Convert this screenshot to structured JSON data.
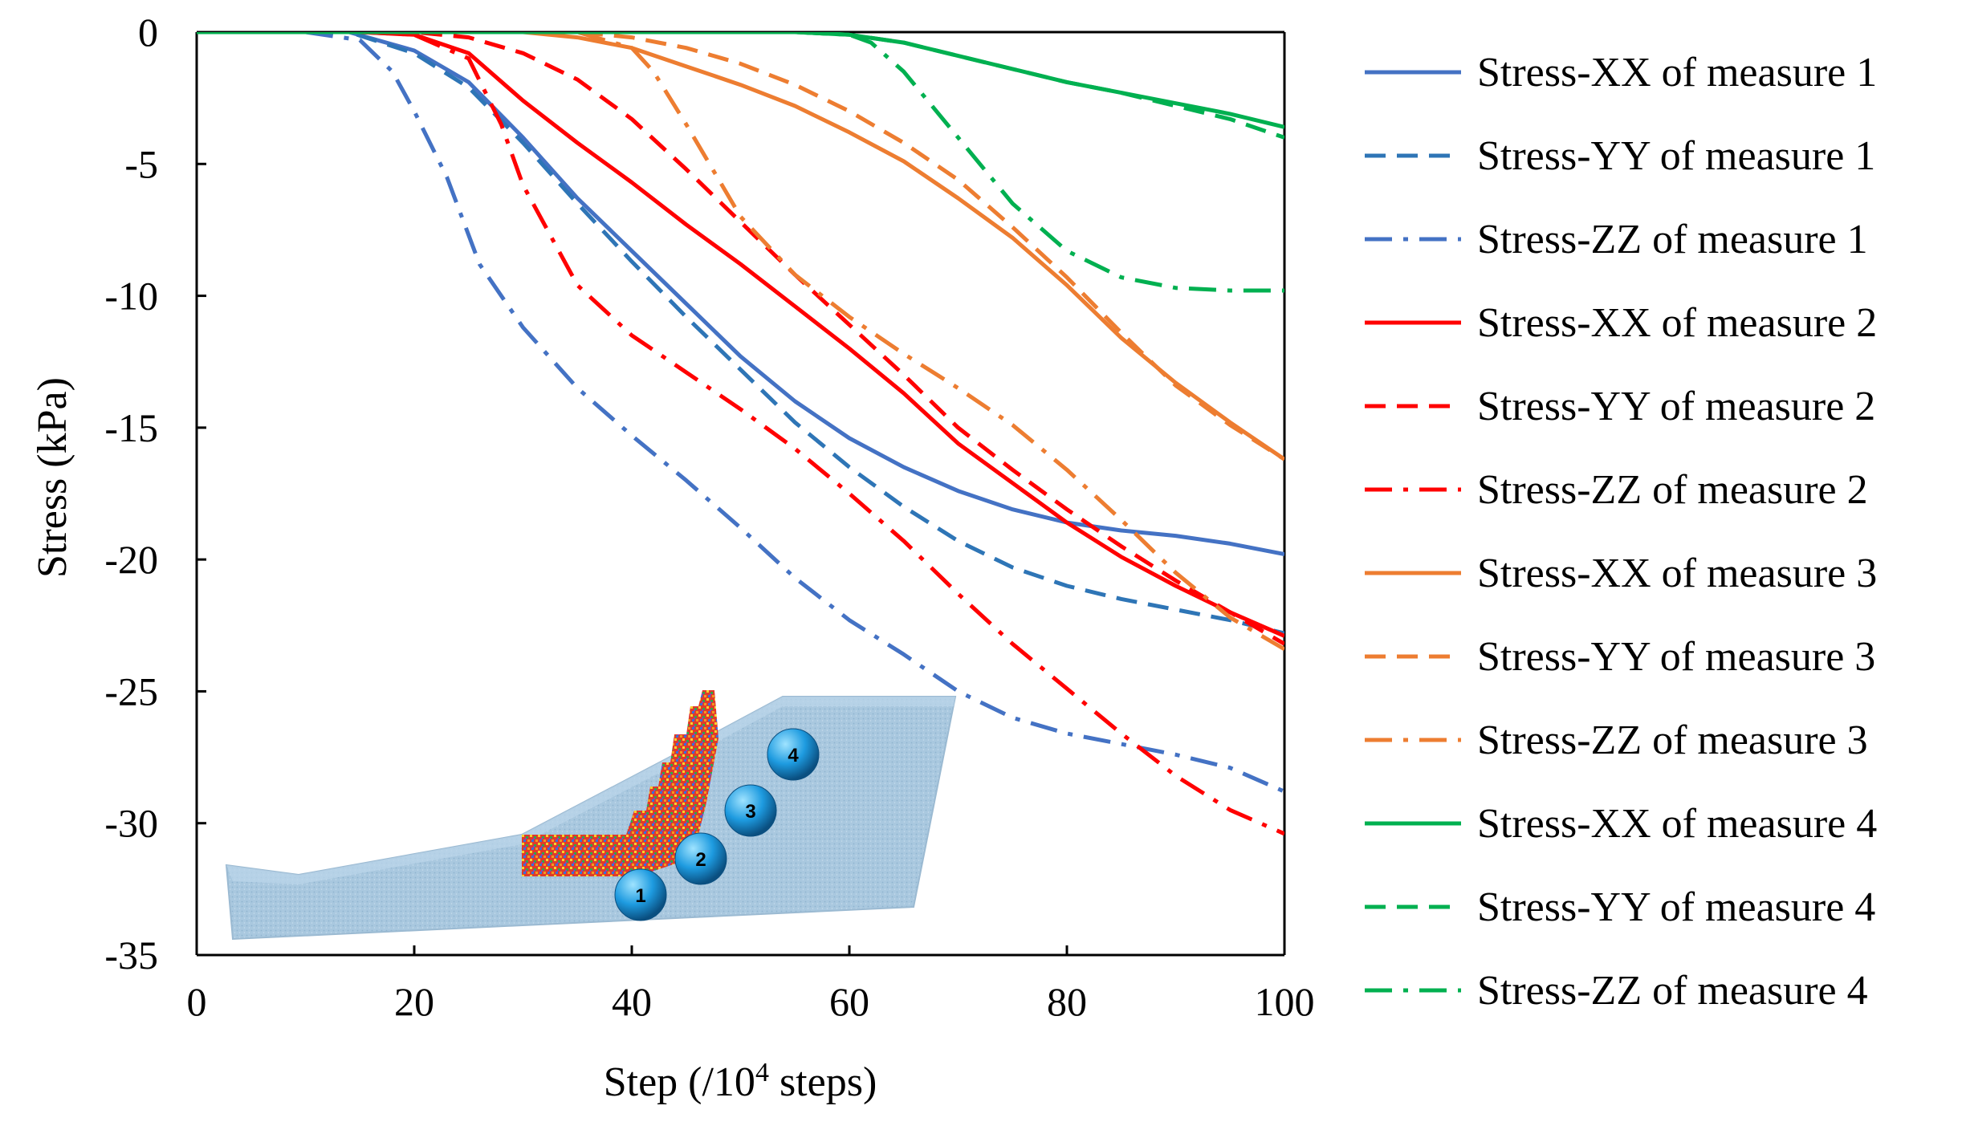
{
  "chart_data": {
    "type": "line",
    "title": "",
    "xlabel": "Step (/10",
    "xlabel_sup": "4",
    "xlabel_end": " steps)",
    "ylabel": "Stress (kPa)",
    "xlim": [
      0,
      100
    ],
    "ylim": [
      -35,
      0
    ],
    "x_ticks": [
      0,
      20,
      40,
      60,
      80,
      100
    ],
    "y_ticks": [
      0,
      -5,
      -10,
      -15,
      -20,
      -25,
      -30,
      -35
    ],
    "grid": false,
    "legend_position": "right",
    "series": [
      {
        "name": "Stress-XX of measure 1",
        "color": "#4472c4",
        "dash": "solid",
        "x": [
          0,
          10,
          14,
          20,
          25,
          30,
          35,
          40,
          45,
          50,
          55,
          60,
          65,
          70,
          75,
          80,
          85,
          90,
          95,
          100
        ],
        "y": [
          0,
          0,
          0,
          -0.7,
          -1.9,
          -4.0,
          -6.3,
          -8.3,
          -10.3,
          -12.3,
          -14.0,
          -15.4,
          -16.5,
          -17.4,
          -18.1,
          -18.6,
          -18.9,
          -19.1,
          -19.4,
          -19.8
        ]
      },
      {
        "name": "Stress-YY of measure 1",
        "color": "#2e75b6",
        "dash": "dash",
        "x": [
          0,
          10,
          14,
          20,
          25,
          30,
          35,
          40,
          45,
          50,
          55,
          60,
          65,
          70,
          75,
          80,
          85,
          90,
          95,
          100
        ],
        "y": [
          0,
          0,
          0,
          -0.8,
          -2.1,
          -4.2,
          -6.5,
          -8.7,
          -10.8,
          -12.8,
          -14.8,
          -16.5,
          -18.0,
          -19.3,
          -20.3,
          -21.0,
          -21.5,
          -21.9,
          -22.3,
          -22.8
        ]
      },
      {
        "name": "Stress-ZZ of measure 1",
        "color": "#4472c4",
        "dash": "dashdot",
        "x": [
          0,
          10,
          15,
          18,
          20,
          23,
          26,
          30,
          35,
          40,
          45,
          50,
          55,
          60,
          65,
          70,
          75,
          80,
          85,
          90,
          95,
          100
        ],
        "y": [
          0,
          0,
          -0.3,
          -1.5,
          -3.0,
          -5.5,
          -8.8,
          -11.2,
          -13.5,
          -15.3,
          -17.0,
          -18.8,
          -20.7,
          -22.3,
          -23.6,
          -25.0,
          -26.0,
          -26.6,
          -27.0,
          -27.4,
          -27.9,
          -28.8
        ]
      },
      {
        "name": "Stress-XX of measure 2",
        "color": "#ff0000",
        "dash": "solid",
        "x": [
          0,
          15,
          20,
          25,
          30,
          35,
          40,
          45,
          50,
          55,
          60,
          65,
          70,
          75,
          80,
          85,
          90,
          95,
          100
        ],
        "y": [
          0,
          0,
          -0.1,
          -0.8,
          -2.6,
          -4.2,
          -5.7,
          -7.3,
          -8.8,
          -10.4,
          -12.0,
          -13.7,
          -15.6,
          -17.1,
          -18.6,
          -19.9,
          -21.0,
          -22.0,
          -22.9
        ]
      },
      {
        "name": "Stress-YY of measure 2",
        "color": "#ff0000",
        "dash": "dash",
        "x": [
          0,
          20,
          25,
          30,
          35,
          40,
          45,
          50,
          55,
          60,
          65,
          70,
          75,
          80,
          85,
          90,
          95,
          100
        ],
        "y": [
          0,
          0,
          -0.2,
          -0.8,
          -1.8,
          -3.3,
          -5.2,
          -7.2,
          -9.2,
          -11.1,
          -13.0,
          -15.0,
          -16.6,
          -18.1,
          -19.5,
          -20.8,
          -22.0,
          -23.2
        ]
      },
      {
        "name": "Stress-ZZ of measure 2",
        "color": "#ff0000",
        "dash": "dashdot",
        "x": [
          0,
          15,
          20,
          25,
          28,
          30,
          35,
          40,
          45,
          50,
          55,
          60,
          65,
          70,
          75,
          80,
          85,
          90,
          95,
          100
        ],
        "y": [
          0,
          0,
          -0.1,
          -1.0,
          -3.5,
          -5.8,
          -9.6,
          -11.5,
          -12.9,
          -14.3,
          -15.8,
          -17.5,
          -19.3,
          -21.3,
          -23.2,
          -24.9,
          -26.6,
          -28.2,
          -29.5,
          -30.4
        ]
      },
      {
        "name": "Stress-XX of measure 3",
        "color": "#ed7d31",
        "dash": "solid",
        "x": [
          0,
          30,
          35,
          40,
          45,
          50,
          55,
          60,
          65,
          70,
          75,
          80,
          85,
          90,
          95,
          100
        ],
        "y": [
          0,
          0,
          -0.2,
          -0.6,
          -1.3,
          -2.0,
          -2.8,
          -3.8,
          -4.9,
          -6.3,
          -7.8,
          -9.6,
          -11.6,
          -13.3,
          -14.8,
          -16.2
        ]
      },
      {
        "name": "Stress-YY of measure 3",
        "color": "#ed7d31",
        "dash": "dash",
        "x": [
          0,
          35,
          40,
          45,
          50,
          55,
          60,
          65,
          70,
          75,
          80,
          85,
          90,
          95,
          100
        ],
        "y": [
          0,
          0,
          -0.2,
          -0.6,
          -1.2,
          -2.0,
          -3.0,
          -4.2,
          -5.6,
          -7.4,
          -9.3,
          -11.4,
          -13.4,
          -14.9,
          -16.2
        ]
      },
      {
        "name": "Stress-ZZ of measure 3",
        "color": "#ed7d31",
        "dash": "dashdot",
        "x": [
          0,
          35,
          40,
          42,
          45,
          50,
          55,
          60,
          65,
          70,
          75,
          80,
          85,
          90,
          95,
          100
        ],
        "y": [
          0,
          0,
          -0.6,
          -1.5,
          -3.5,
          -7.0,
          -9.2,
          -10.8,
          -12.2,
          -13.5,
          -14.9,
          -16.6,
          -18.5,
          -20.5,
          -22.2,
          -23.4
        ]
      },
      {
        "name": "Stress-XX of measure 4",
        "color": "#00b050",
        "dash": "solid",
        "x": [
          0,
          55,
          60,
          65,
          70,
          75,
          80,
          85,
          90,
          95,
          100
        ],
        "y": [
          0,
          0,
          -0.1,
          -0.4,
          -0.9,
          -1.4,
          -1.9,
          -2.3,
          -2.7,
          -3.1,
          -3.6
        ]
      },
      {
        "name": "Stress-YY of measure 4",
        "color": "#00b050",
        "dash": "dash",
        "x": [
          0,
          55,
          60,
          65,
          70,
          75,
          80,
          85,
          90,
          95,
          100
        ],
        "y": [
          0,
          0,
          -0.1,
          -0.4,
          -0.9,
          -1.4,
          -1.9,
          -2.3,
          -2.8,
          -3.3,
          -4.0
        ]
      },
      {
        "name": "Stress-ZZ of measure 4",
        "color": "#00b050",
        "dash": "dashdot",
        "x": [
          0,
          55,
          60,
          62,
          65,
          70,
          75,
          80,
          85,
          90,
          95,
          100
        ],
        "y": [
          0,
          0,
          -0.1,
          -0.4,
          -1.5,
          -4.0,
          -6.5,
          -8.3,
          -9.3,
          -9.7,
          -9.8,
          -9.8
        ]
      }
    ]
  },
  "inset": {
    "description_labels": [
      "1",
      "2",
      "3",
      "4"
    ],
    "slope_color": "#a9c8df",
    "ball_color": "#1e9be0"
  }
}
